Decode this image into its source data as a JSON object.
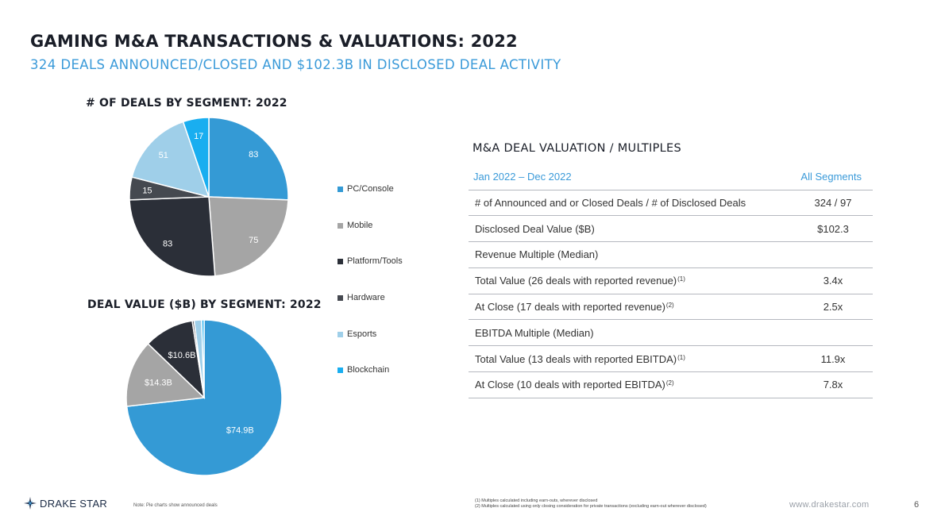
{
  "header": {
    "title": "GAMING M&A TRANSACTIONS & VALUATIONS: 2022",
    "subtitle": "324 DEALS ANNOUNCED/CLOSED AND $102.3B IN DISCLOSED DEAL ACTIVITY"
  },
  "colors": {
    "pc_console": "#349ad5",
    "mobile": "#a5a5a5",
    "platform_tools": "#2b2f38",
    "hardware": "#454950",
    "esports": "#9fcfe9",
    "blockchain": "#19aef0",
    "accent": "#3a9ad9"
  },
  "chart_data": [
    {
      "type": "pie",
      "title": "# OF DEALS BY SEGMENT: 2022",
      "categories": [
        "PC/Console",
        "Mobile",
        "Platform/Tools",
        "Hardware",
        "Esports",
        "Blockchain"
      ],
      "values": [
        83,
        75,
        83,
        15,
        51,
        17
      ],
      "labels": [
        "83",
        "75",
        "83",
        "15",
        "51",
        "17"
      ]
    },
    {
      "type": "pie",
      "title": "DEAL VALUE ($B) BY SEGMENT: 2022",
      "categories": [
        "PC/Console",
        "Mobile",
        "Platform/Tools",
        "Hardware",
        "Esports",
        "Blockchain"
      ],
      "values": [
        74.9,
        14.3,
        10.6,
        0.4,
        1.6,
        0.5
      ],
      "labels": [
        "$74.9B",
        "$14.3B",
        "$10.6B",
        "",
        "",
        ""
      ]
    }
  ],
  "legend": [
    {
      "label": "PC/Console",
      "color_key": "pc_console"
    },
    {
      "label": "Mobile",
      "color_key": "mobile"
    },
    {
      "label": "Platform/Tools",
      "color_key": "platform_tools"
    },
    {
      "label": "Hardware",
      "color_key": "hardware"
    },
    {
      "label": "Esports",
      "color_key": "esports"
    },
    {
      "label": "Blockchain",
      "color_key": "blockchain"
    }
  ],
  "valuation": {
    "title": "M&A DEAL VALUATION / MULTIPLES",
    "header_period": "Jan 2022 – Dec 2022",
    "header_segments": "All Segments",
    "rows": [
      {
        "label": "# of Announced and or Closed Deals / # of Disclosed Deals",
        "sup": "",
        "value": "324 / 97"
      },
      {
        "label": "Disclosed Deal Value ($B)",
        "sup": "",
        "value": "$102.3"
      },
      {
        "label": "Revenue Multiple (Median)",
        "sup": "",
        "value": ""
      },
      {
        "label": "Total Value (26 deals with reported revenue)",
        "sup": "(1)",
        "value": "3.4x"
      },
      {
        "label": "At Close (17 deals with reported revenue)",
        "sup": "(2)",
        "value": "2.5x"
      },
      {
        "label": "EBITDA Multiple (Median)",
        "sup": "",
        "value": ""
      },
      {
        "label": "Total Value (13 deals with reported EBITDA)",
        "sup": "(1)",
        "value": "11.9x"
      },
      {
        "label": "At Close (10 deals with reported EBITDA)",
        "sup": "(2)",
        "value": "7.8x"
      }
    ]
  },
  "footer": {
    "logo_text": "DRAKE STAR",
    "note": "Note: Pie charts show announced deals",
    "footnote1": "(1) Multiples calculated including earn-outs, wherever disclosed",
    "footnote2": "(2) Multiples calculated using only closing consideration for private transactions (excluding earn-out wherever disclosed)",
    "website": "www.drakestar.com",
    "page": "6"
  }
}
